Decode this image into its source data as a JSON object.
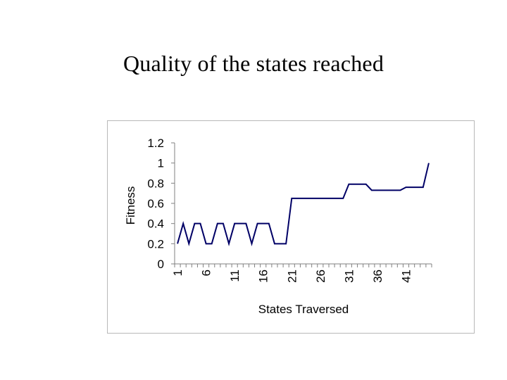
{
  "slide": {
    "title": "Quality of the states reached"
  },
  "colors": {
    "line": "#000066",
    "axis": "#808080",
    "frame": "#b8b8b8"
  },
  "chart_data": {
    "type": "line",
    "title": "",
    "xlabel": "States Traversed",
    "ylabel": "Fitness",
    "ylim": [
      0,
      1.2
    ],
    "y_ticks": [
      0,
      0.2,
      0.4,
      0.6,
      0.8,
      1,
      1.2
    ],
    "x_tick_labels": [
      "1",
      "6",
      "11",
      "16",
      "21",
      "26",
      "31",
      "36",
      "41"
    ],
    "grid": false,
    "legend": "none",
    "series": [
      {
        "name": "Fitness",
        "x": [
          1,
          2,
          3,
          4,
          5,
          6,
          7,
          8,
          9,
          10,
          11,
          12,
          13,
          14,
          15,
          16,
          17,
          18,
          19,
          20,
          21,
          22,
          23,
          24,
          25,
          26,
          27,
          28,
          29,
          30,
          31,
          32,
          33,
          34,
          35,
          36,
          37,
          38,
          39,
          40,
          41,
          42,
          43,
          44,
          45
        ],
        "values": [
          0.2,
          0.4,
          0.2,
          0.4,
          0.4,
          0.2,
          0.2,
          0.4,
          0.4,
          0.2,
          0.4,
          0.4,
          0.4,
          0.2,
          0.4,
          0.4,
          0.4,
          0.2,
          0.2,
          0.2,
          0.65,
          0.65,
          0.65,
          0.65,
          0.65,
          0.65,
          0.65,
          0.65,
          0.65,
          0.65,
          0.79,
          0.79,
          0.79,
          0.79,
          0.73,
          0.73,
          0.73,
          0.73,
          0.73,
          0.73,
          0.76,
          0.76,
          0.76,
          0.76,
          1.0
        ]
      }
    ]
  }
}
